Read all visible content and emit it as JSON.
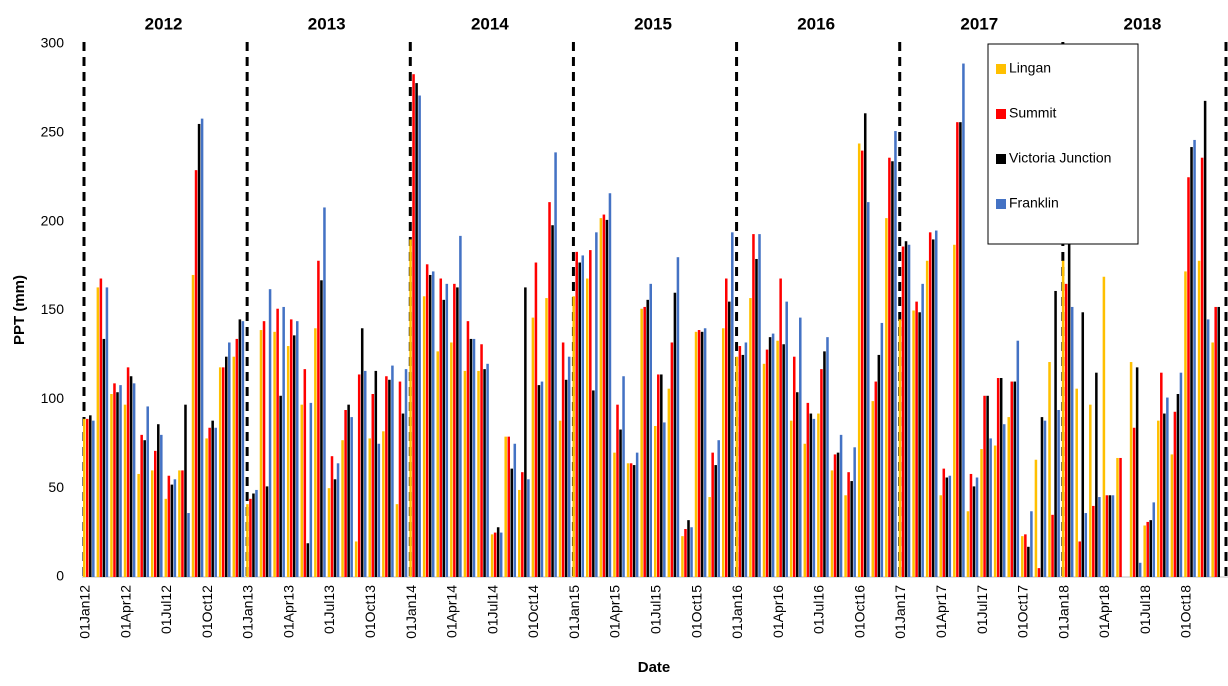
{
  "chart_data": {
    "type": "bar",
    "x_label": "Date",
    "y_label": "PPT (mm)",
    "year_labels": [
      "2012",
      "2013",
      "2014",
      "2015",
      "2016",
      "2017",
      "2018"
    ],
    "categories": [
      "01Jan12",
      null,
      null,
      "01Apr12",
      null,
      null,
      "01Jul12",
      null,
      null,
      "01Oct12",
      null,
      null,
      "01Jan13",
      null,
      null,
      "01Apr13",
      null,
      null,
      "01Jul13",
      null,
      null,
      "01Oct13",
      null,
      null,
      "01Jan14",
      null,
      null,
      "01Apr14",
      null,
      null,
      "01Jul14",
      null,
      null,
      "01Oct14",
      null,
      null,
      "01Jan15",
      null,
      null,
      "01Apr15",
      null,
      null,
      "01Jul15",
      null,
      null,
      "01Oct15",
      null,
      null,
      "01Jan16",
      null,
      null,
      "01Apr16",
      null,
      null,
      "01Jul16",
      null,
      null,
      "01Oct16",
      null,
      null,
      "01Jan17",
      null,
      null,
      "01Apr17",
      null,
      null,
      "01Jul17",
      null,
      null,
      "01Oct17",
      null,
      null,
      "01Jan18",
      null,
      null,
      "01Apr18",
      null,
      null,
      "01Jul18",
      null,
      null,
      "01Oct18",
      null,
      null
    ],
    "series": [
      {
        "name": "Lingan",
        "color": "#FFC000",
        "values": [
          89,
          163,
          103,
          97,
          58,
          60,
          44,
          60,
          170,
          78,
          118,
          124,
          41,
          139,
          138,
          130,
          97,
          140,
          50,
          77,
          20,
          78,
          82,
          41,
          190,
          158,
          127,
          132,
          116,
          116,
          24,
          79,
          49,
          146,
          157,
          88,
          158,
          168,
          202,
          70,
          64,
          151,
          85,
          106,
          23,
          138,
          45,
          140,
          124,
          157,
          120,
          133,
          88,
          75,
          92,
          60,
          46,
          244,
          99,
          202,
          145,
          150,
          178,
          46,
          187,
          37,
          72,
          74,
          90,
          23,
          66,
          121,
          178,
          106,
          97,
          169,
          67,
          121,
          29,
          88,
          69,
          172,
          178,
          132
        ]
      },
      {
        "name": "Summit",
        "color": "#FF0000",
        "values": [
          89,
          168,
          109,
          118,
          80,
          71,
          57,
          60,
          229,
          84,
          118,
          134,
          44,
          144,
          151,
          145,
          117,
          178,
          68,
          94,
          114,
          103,
          113,
          110,
          283,
          176,
          168,
          165,
          144,
          131,
          25,
          79,
          59,
          177,
          211,
          132,
          183,
          184,
          204,
          97,
          64,
          152,
          114,
          132,
          27,
          139,
          70,
          168,
          130,
          193,
          128,
          168,
          124,
          98,
          117,
          69,
          59,
          240,
          110,
          236,
          186,
          155,
          194,
          61,
          256,
          58,
          102,
          112,
          110,
          24,
          5,
          35,
          165,
          20,
          40,
          46,
          67,
          84,
          31,
          115,
          93,
          225,
          236,
          152
        ]
      },
      {
        "name": "Victoria Junction",
        "color": "#000000",
        "values": [
          91,
          134,
          104,
          113,
          77,
          86,
          52,
          97,
          255,
          88,
          124,
          145,
          47,
          51,
          102,
          136,
          19,
          167,
          55,
          97,
          140,
          116,
          111,
          92,
          278,
          170,
          156,
          163,
          134,
          117,
          28,
          61,
          163,
          108,
          198,
          111,
          177,
          105,
          201,
          83,
          63,
          156,
          114,
          160,
          32,
          138,
          63,
          155,
          125,
          179,
          135,
          131,
          104,
          92,
          127,
          70,
          54,
          261,
          125,
          234,
          189,
          149,
          190,
          56,
          256,
          51,
          102,
          112,
          110,
          17,
          90,
          161,
          205,
          149,
          115,
          46,
          null,
          118,
          32,
          92,
          103,
          242,
          268,
          152
        ]
      },
      {
        "name": "Franklin",
        "color": "#4472C4",
        "values": [
          88,
          163,
          108,
          109,
          96,
          80,
          55,
          36,
          258,
          84,
          132,
          144,
          49,
          162,
          152,
          144,
          98,
          208,
          64,
          90,
          116,
          75,
          119,
          117,
          271,
          172,
          165,
          192,
          134,
          120,
          25,
          75,
          55,
          110,
          239,
          124,
          181,
          194,
          216,
          113,
          70,
          165,
          87,
          180,
          28,
          140,
          77,
          194,
          132,
          193,
          137,
          155,
          146,
          89,
          135,
          80,
          73,
          211,
          143,
          251,
          187,
          165,
          195,
          57,
          289,
          56,
          78,
          86,
          133,
          37,
          88,
          94,
          152,
          36,
          45,
          46,
          null,
          8,
          42,
          101,
          115,
          246,
          145,
          null
        ]
      }
    ],
    "ylim": [
      0,
      300
    ],
    "yticks": [
      0,
      50,
      100,
      150,
      200,
      250,
      300
    ],
    "legend": "top-right"
  }
}
